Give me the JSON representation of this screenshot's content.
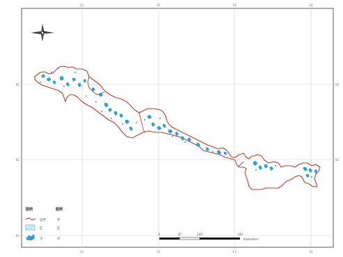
{
  "map": {
    "title": "",
    "colors": {
      "frame": "#333333",
      "grid": "#cfcfcf",
      "boundary": "#c0392b",
      "water": "#2f9fd8",
      "background": "#ffffff"
    },
    "north_arrow": {
      "icon": "compass-north-arrow"
    },
    "grid_labels": {
      "top": [
        "E1",
        "E2",
        "E3",
        "E4"
      ],
      "bottom": [
        "E1",
        "E2",
        "E3",
        "E4"
      ],
      "left": [
        "N1",
        "N2",
        "N3"
      ],
      "right": [
        "N1",
        "N2"
      ]
    },
    "legend": {
      "col1_head": "图例",
      "col2_head": "图例",
      "items": [
        {
          "symbol": "boundary-line",
          "label": "边界",
          "label2": "界"
        },
        {
          "symbol": "hatched-area",
          "label": "区",
          "label2": "区"
        },
        {
          "symbol": "water-fill",
          "label": "水",
          "label2": "水"
        }
      ]
    },
    "scale_bar": {
      "ticks": [
        "0",
        "50",
        "100",
        "200"
      ],
      "unit": "Kilometers"
    }
  }
}
